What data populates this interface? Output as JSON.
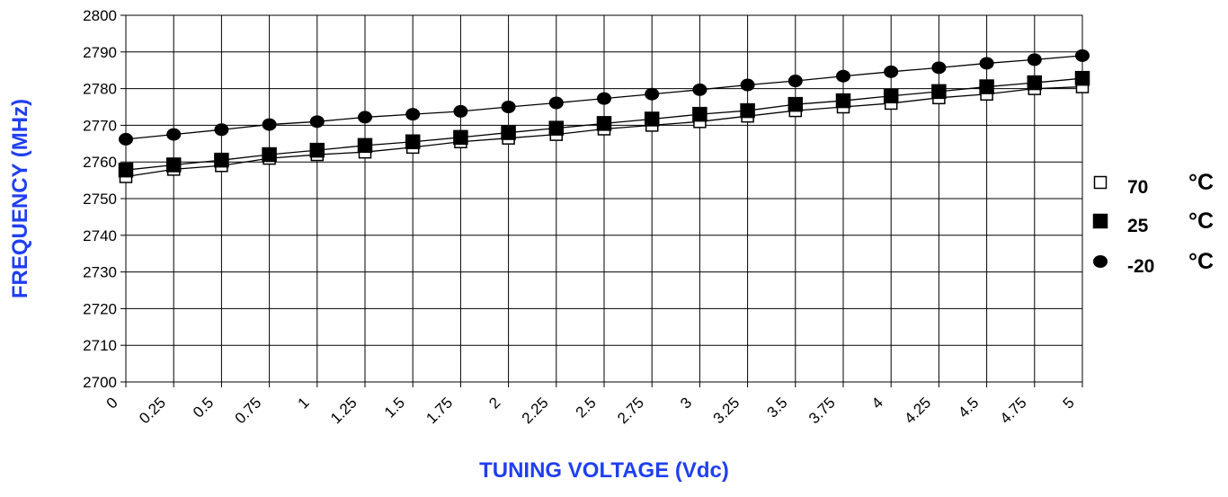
{
  "chart_data": {
    "type": "line",
    "title": "",
    "xlabel": "TUNING VOLTAGE (Vdc)",
    "ylabel": "FREQUENCY (MHz)",
    "axis_color": "#1f3ff0",
    "ylim": [
      2700,
      2800
    ],
    "yticks": [
      "2700",
      "2710",
      "2720",
      "2730",
      "2740",
      "2750",
      "2760",
      "2770",
      "2780",
      "2790",
      "2800"
    ],
    "categories": [
      "0",
      "0.25",
      "0.5",
      "0.75",
      "1",
      "1.25",
      "1.5",
      "1.75",
      "2",
      "2.25",
      "2.5",
      "2.75",
      "3",
      "3.25",
      "3.5",
      "3.75",
      "4",
      "4.25",
      "4.5",
      "4.75",
      "5"
    ],
    "grid": true,
    "legend_position": "right",
    "series": [
      {
        "name": "70",
        "unit": "°C",
        "marker": "hollow-square",
        "values": [
          2756,
          2758,
          2759,
          2761,
          2762,
          2762.7,
          2764,
          2765.5,
          2766.5,
          2767.5,
          2769,
          2770,
          2771,
          2772.5,
          2774,
          2775,
          2776,
          2777.5,
          2778.5,
          2780,
          2780.5
        ]
      },
      {
        "name": "25",
        "unit": "°C",
        "marker": "filled-square",
        "values": [
          2757.8,
          2759.2,
          2760.5,
          2762,
          2763.2,
          2764.5,
          2765.5,
          2766.7,
          2768,
          2769.2,
          2770.5,
          2771.7,
          2773,
          2774,
          2775.7,
          2776.7,
          2778,
          2779.2,
          2780.5,
          2781.6,
          2782.8
        ]
      },
      {
        "name": "-20",
        "unit": "°C",
        "marker": "filled-circle",
        "values": [
          2766.2,
          2767.5,
          2768.8,
          2770.2,
          2771,
          2772.2,
          2773,
          2773.8,
          2775,
          2776.1,
          2777.3,
          2778.5,
          2779.7,
          2781,
          2782.1,
          2783.4,
          2784.6,
          2785.7,
          2786.9,
          2787.9,
          2789
        ]
      }
    ]
  }
}
